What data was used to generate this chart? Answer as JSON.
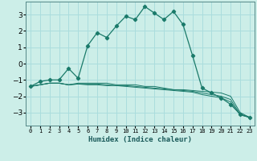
{
  "xlabel": "Humidex (Indice chaleur)",
  "x": [
    0,
    1,
    2,
    3,
    4,
    5,
    6,
    7,
    8,
    9,
    10,
    11,
    12,
    13,
    14,
    15,
    16,
    17,
    18,
    19,
    20,
    21,
    22,
    23
  ],
  "line1": [
    -1.4,
    -1.1,
    -1.0,
    -1.0,
    -0.3,
    -0.9,
    1.1,
    1.9,
    1.6,
    2.3,
    2.9,
    2.7,
    3.5,
    3.1,
    2.7,
    3.2,
    2.4,
    0.5,
    -1.5,
    -1.8,
    -2.1,
    -2.5,
    -3.1,
    -3.3
  ],
  "line2": [
    -1.4,
    -1.3,
    -1.2,
    -1.2,
    -1.3,
    -1.2,
    -1.2,
    -1.2,
    -1.2,
    -1.3,
    -1.3,
    -1.3,
    -1.4,
    -1.4,
    -1.5,
    -1.6,
    -1.6,
    -1.65,
    -1.7,
    -1.75,
    -1.8,
    -2.0,
    -3.0,
    -3.3
  ],
  "line3": [
    -1.4,
    -1.3,
    -1.2,
    -1.2,
    -1.3,
    -1.25,
    -1.25,
    -1.25,
    -1.3,
    -1.35,
    -1.35,
    -1.4,
    -1.45,
    -1.5,
    -1.55,
    -1.6,
    -1.65,
    -1.7,
    -1.8,
    -1.9,
    -2.0,
    -2.2,
    -3.1,
    -3.3
  ],
  "line4": [
    -1.4,
    -1.3,
    -1.2,
    -1.2,
    -1.3,
    -1.25,
    -1.3,
    -1.3,
    -1.35,
    -1.35,
    -1.4,
    -1.45,
    -1.5,
    -1.55,
    -1.6,
    -1.65,
    -1.7,
    -1.75,
    -1.9,
    -2.0,
    -2.1,
    -2.35,
    -3.15,
    -3.3
  ],
  "color": "#1a7a6a",
  "bg_color": "#cceee8",
  "grid_color": "#aadddd",
  "ylim": [
    -3.8,
    3.8
  ],
  "yticks": [
    -3,
    -2,
    -1,
    0,
    1,
    2,
    3
  ],
  "xlim": [
    -0.5,
    23.5
  ]
}
